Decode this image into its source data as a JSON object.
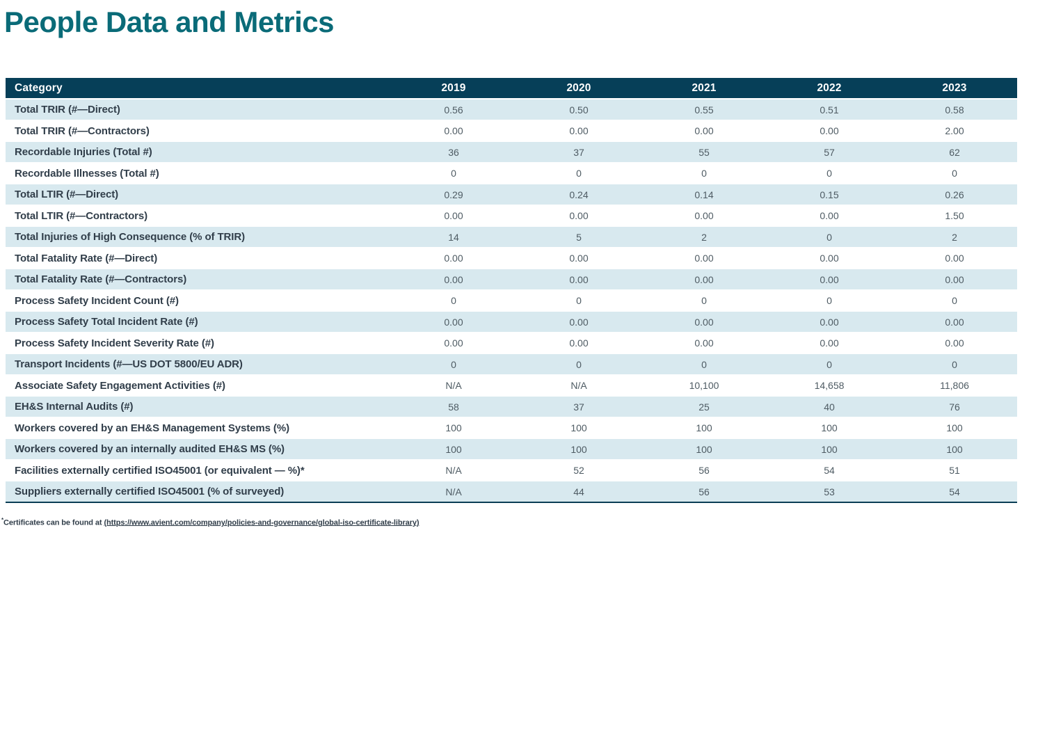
{
  "title": "People Data and Metrics",
  "table": {
    "columns": [
      "Category",
      "2019",
      "2020",
      "2021",
      "2022",
      "2023"
    ],
    "rows": [
      {
        "category": "Total TRIR (#—Direct)",
        "values": [
          "0.56",
          "0.50",
          "0.55",
          "0.51",
          "0.58"
        ]
      },
      {
        "category": "Total TRIR (#—Contractors)",
        "values": [
          "0.00",
          "0.00",
          "0.00",
          "0.00",
          "2.00"
        ]
      },
      {
        "category": "Recordable Injuries (Total #)",
        "values": [
          "36",
          "37",
          "55",
          "57",
          "62"
        ]
      },
      {
        "category": "Recordable Illnesses (Total #)",
        "values": [
          "0",
          "0",
          "0",
          "0",
          "0"
        ]
      },
      {
        "category": "Total LTIR (#—Direct)",
        "values": [
          "0.29",
          "0.24",
          "0.14",
          "0.15",
          "0.26"
        ]
      },
      {
        "category": "Total LTIR (#—Contractors)",
        "values": [
          "0.00",
          "0.00",
          "0.00",
          "0.00",
          "1.50"
        ]
      },
      {
        "category": "Total Injuries of High Consequence (% of TRIR)",
        "values": [
          "14",
          "5",
          "2",
          "0",
          "2"
        ]
      },
      {
        "category": "Total Fatality Rate (#—Direct)",
        "values": [
          "0.00",
          "0.00",
          "0.00",
          "0.00",
          "0.00"
        ]
      },
      {
        "category": "Total Fatality Rate (#—Contractors)",
        "values": [
          "0.00",
          "0.00",
          "0.00",
          "0.00",
          "0.00"
        ]
      },
      {
        "category": "Process Safety Incident Count (#)",
        "values": [
          "0",
          "0",
          "0",
          "0",
          "0"
        ]
      },
      {
        "category": "Process Safety Total Incident Rate (#)",
        "values": [
          "0.00",
          "0.00",
          "0.00",
          "0.00",
          "0.00"
        ]
      },
      {
        "category": "Process Safety Incident Severity Rate (#)",
        "values": [
          "0.00",
          "0.00",
          "0.00",
          "0.00",
          "0.00"
        ]
      },
      {
        "category": "Transport Incidents (#—US DOT 5800/EU ADR)",
        "values": [
          "0",
          "0",
          "0",
          "0",
          "0"
        ]
      },
      {
        "category": "Associate Safety Engagement Activities (#)",
        "values": [
          "N/A",
          "N/A",
          "10,100",
          "14,658",
          "11,806"
        ]
      },
      {
        "category": "EH&S Internal Audits (#)",
        "values": [
          "58",
          "37",
          "25",
          "40",
          "76"
        ]
      },
      {
        "category": "Workers covered by an EH&S Management Systems (%)",
        "values": [
          "100",
          "100",
          "100",
          "100",
          "100"
        ]
      },
      {
        "category": "Workers covered by an internally audited EH&S MS (%)",
        "values": [
          "100",
          "100",
          "100",
          "100",
          "100"
        ]
      },
      {
        "category": "Facilities externally certified ISO45001 (or equivalent — %)*",
        "values": [
          "N/A",
          "52",
          "56",
          "54",
          "51"
        ]
      },
      {
        "category": "Suppliers externally certified ISO45001 (% of surveyed)",
        "values": [
          "N/A",
          "44",
          "56",
          "53",
          "54"
        ]
      }
    ]
  },
  "footnote": {
    "marker": "*",
    "text": "Certificates can be found at ",
    "link": "(https://www.avient.com/company/policies-and-governance/global-iso-certificate-library)"
  },
  "colors": {
    "title": "#0a6b78",
    "header_bg": "#063f58",
    "row_alt_bg": "#d8e9ef",
    "label_text": "#313e4a",
    "value_text": "#4e5b63",
    "table_bottom_border": "#0a3d55"
  }
}
